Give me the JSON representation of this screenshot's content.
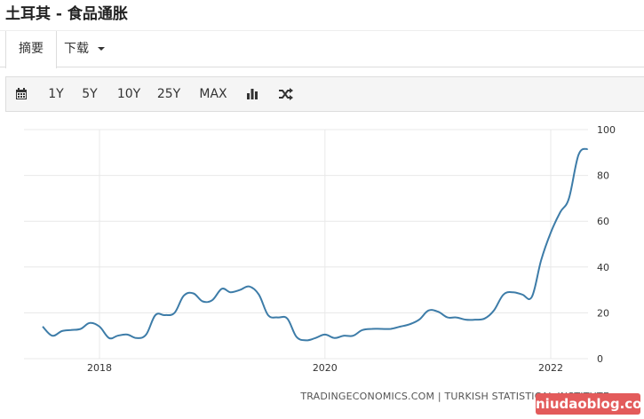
{
  "header": {
    "title": "土耳其 - 食品通胀"
  },
  "tabs": [
    {
      "label": "摘要",
      "active": true
    },
    {
      "label": "下载",
      "active": false
    }
  ],
  "toolbar": {
    "calendar_icon": "calendar-icon",
    "ranges": [
      "1Y",
      "5Y",
      "10Y",
      "25Y",
      "MAX"
    ],
    "bar_icon": "bar-chart-icon",
    "shuffle_icon": "shuffle-icon"
  },
  "chart_data": {
    "type": "line",
    "title": "",
    "xlabel": "",
    "ylabel": "",
    "ylim": [
      0,
      100
    ],
    "yticks": [
      0,
      20,
      40,
      60,
      80,
      100
    ],
    "xticks": [
      "2018",
      "2020",
      "2022"
    ],
    "grid": true,
    "line_color": "#3d7ca8",
    "series": [
      {
        "x": [
          "2017-07",
          "2017-08",
          "2017-09",
          "2017-10",
          "2017-11",
          "2017-12",
          "2018-01",
          "2018-02",
          "2018-03",
          "2018-04",
          "2018-05",
          "2018-06",
          "2018-07",
          "2018-08",
          "2018-09",
          "2018-10",
          "2018-11",
          "2018-12",
          "2019-01",
          "2019-02",
          "2019-03",
          "2019-04",
          "2019-05",
          "2019-06",
          "2019-07",
          "2019-08",
          "2019-09",
          "2019-10",
          "2019-11",
          "2019-12",
          "2020-01",
          "2020-02",
          "2020-03",
          "2020-04",
          "2020-05",
          "2020-06",
          "2020-07",
          "2020-08",
          "2020-09",
          "2020-10",
          "2020-11",
          "2020-12",
          "2021-01",
          "2021-02",
          "2021-03",
          "2021-04",
          "2021-05",
          "2021-06",
          "2021-07",
          "2021-08",
          "2021-09",
          "2021-10",
          "2021-11",
          "2021-12",
          "2022-01",
          "2022-02",
          "2022-03",
          "2022-04",
          "2022-05"
        ],
        "values": [
          14.0,
          10.0,
          12.0,
          12.5,
          13.0,
          15.6,
          14.0,
          9.0,
          10.0,
          10.5,
          9.0,
          10.5,
          19.0,
          19.0,
          20.0,
          27.5,
          28.5,
          25.0,
          25.5,
          30.5,
          29.0,
          30.0,
          31.5,
          28.0,
          19.0,
          18.0,
          17.5,
          9.5,
          8.0,
          9.0,
          10.5,
          9.0,
          10.0,
          10.0,
          12.5,
          13.0,
          13.0,
          13.0,
          14.0,
          15.0,
          17.0,
          21.0,
          20.5,
          18.0,
          18.0,
          17.0,
          17.0,
          17.5,
          21.0,
          28.0,
          29.0,
          28.0,
          27.0,
          43.0,
          55.0,
          64.0,
          70.0,
          89.0,
          91.6
        ]
      }
    ]
  },
  "source": "TRADINGECONOMICS.COM | TURKISH STATISTICAL INSTITUTE",
  "watermark": "niudaoblog.com"
}
